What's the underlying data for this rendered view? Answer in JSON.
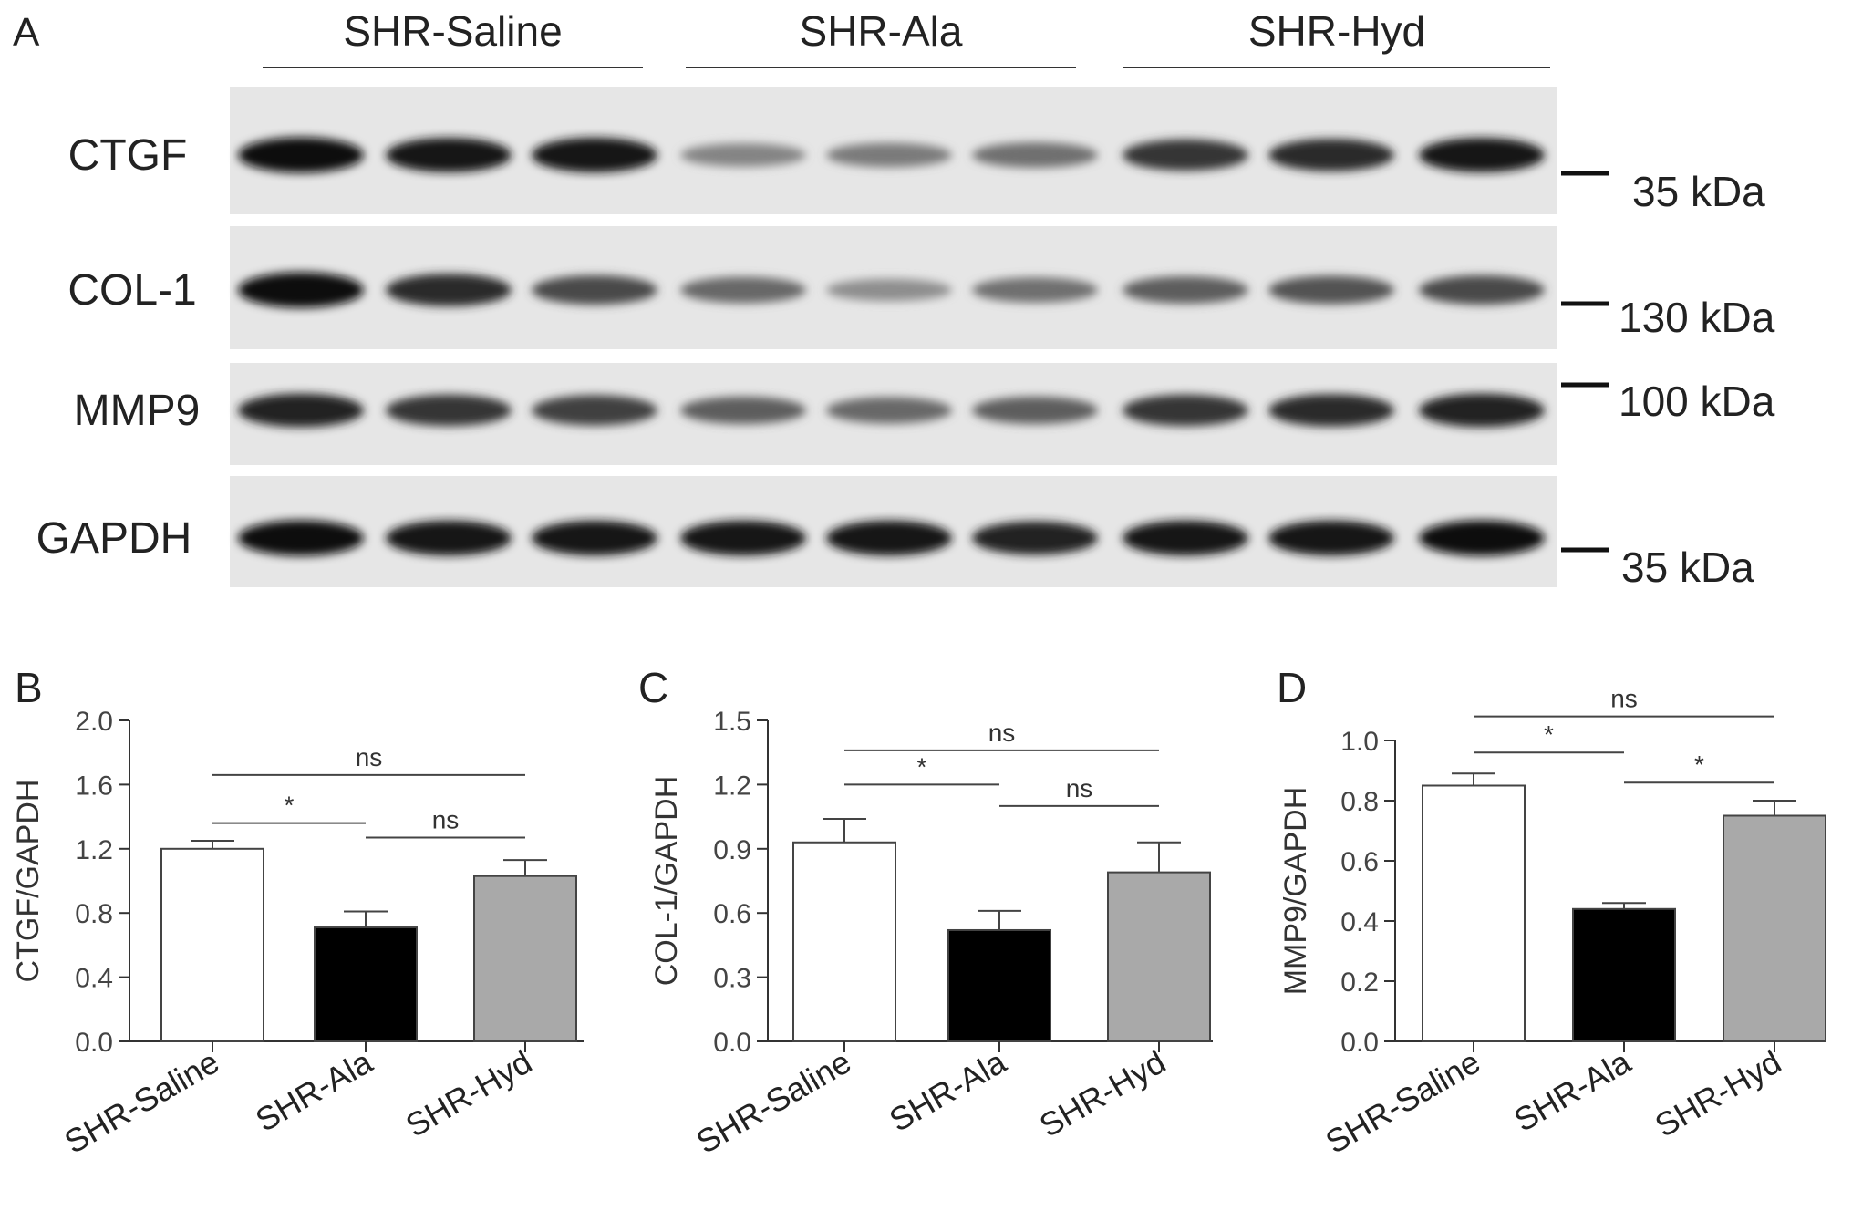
{
  "blot": {
    "panel_label": "A",
    "groups": [
      "SHR-Saline",
      "SHR-Ala",
      "SHR-Hyd"
    ],
    "rows": [
      {
        "label": "CTGF",
        "marker": "35 kDa",
        "intensities": [
          0.95,
          0.9,
          0.92,
          0.35,
          0.4,
          0.45,
          0.75,
          0.8,
          0.9
        ]
      },
      {
        "label": "COL-1",
        "marker": "130 kDa",
        "intensities": [
          0.95,
          0.8,
          0.65,
          0.5,
          0.3,
          0.45,
          0.55,
          0.6,
          0.65
        ]
      },
      {
        "label": "MMP9",
        "marker": "100 kDa",
        "intensities": [
          0.85,
          0.75,
          0.7,
          0.55,
          0.5,
          0.55,
          0.75,
          0.8,
          0.85
        ]
      },
      {
        "label": "GAPDH",
        "marker": "35 kDa",
        "intensities": [
          0.95,
          0.93,
          0.92,
          0.93,
          0.93,
          0.85,
          0.93,
          0.93,
          0.95
        ]
      }
    ]
  },
  "colors": {
    "saline": "#ffffff",
    "ala": "#000000",
    "hyd": "#a9a9a9",
    "axis": "#333333"
  },
  "chart_data": [
    {
      "panel_label": "B",
      "type": "bar",
      "categories": [
        "SHR-Saline",
        "SHR-Ala",
        "SHR-Hyd"
      ],
      "values": [
        1.2,
        0.71,
        1.03
      ],
      "errors": [
        0.05,
        0.1,
        0.1
      ],
      "ylabel": "CTGF/GAPDH",
      "ylim": [
        0,
        2.0
      ],
      "yticks": [
        "0.0",
        "0.4",
        "0.8",
        "1.2",
        "1.6",
        "2.0"
      ],
      "comparisons": [
        {
          "from": 0,
          "to": 1,
          "label": "*",
          "y": 1.36
        },
        {
          "from": 0,
          "to": 2,
          "label": "ns",
          "y": 1.66
        },
        {
          "from": 1,
          "to": 2,
          "label": "ns",
          "y": 1.27
        }
      ]
    },
    {
      "panel_label": "C",
      "type": "bar",
      "categories": [
        "SHR-Saline",
        "SHR-Ala",
        "SHR-Hyd"
      ],
      "values": [
        0.93,
        0.52,
        0.79
      ],
      "errors": [
        0.11,
        0.09,
        0.14
      ],
      "ylabel": "COL-1/GAPDH",
      "ylim": [
        0,
        1.5
      ],
      "yticks": [
        "0.0",
        "0.3",
        "0.6",
        "0.9",
        "1.2",
        "1.5"
      ],
      "comparisons": [
        {
          "from": 0,
          "to": 1,
          "label": "*",
          "y": 1.2
        },
        {
          "from": 0,
          "to": 2,
          "label": "ns",
          "y": 1.36
        },
        {
          "from": 1,
          "to": 2,
          "label": "ns",
          "y": 1.1
        }
      ]
    },
    {
      "panel_label": "D",
      "type": "bar",
      "categories": [
        "SHR-Saline",
        "SHR-Ala",
        "SHR-Hyd"
      ],
      "values": [
        0.85,
        0.44,
        0.75
      ],
      "errors": [
        0.04,
        0.02,
        0.05
      ],
      "ylabel": "MMP9/GAPDH",
      "ylim": [
        0,
        1.0
      ],
      "yticks": [
        "0.0",
        "0.2",
        "0.4",
        "0.6",
        "0.8",
        "1.0"
      ],
      "comparisons": [
        {
          "from": 0,
          "to": 1,
          "label": "*",
          "y": 0.96
        },
        {
          "from": 0,
          "to": 2,
          "label": "ns",
          "y": 1.08
        },
        {
          "from": 1,
          "to": 2,
          "label": "*",
          "y": 0.86
        }
      ]
    }
  ]
}
